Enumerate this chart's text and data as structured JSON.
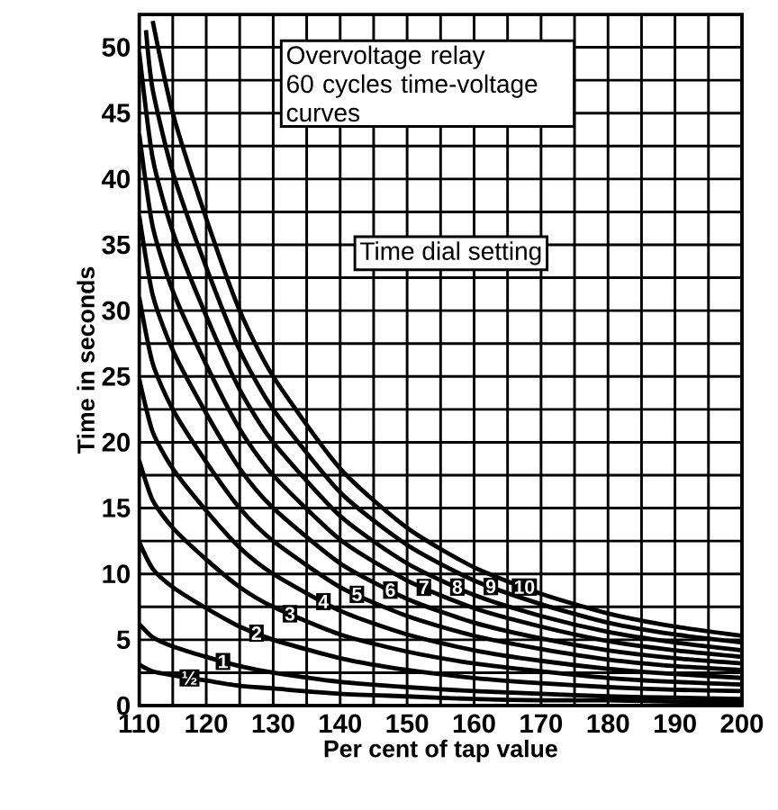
{
  "chart_data": {
    "type": "line",
    "title": "Overvoltage relay",
    "subtitle": "60 cycles time-voltage curves",
    "legend_title": "Time dial setting",
    "xlabel": "Per cent of tap value",
    "ylabel": "Time in seconds",
    "xlim": [
      110,
      200
    ],
    "ylim": [
      0,
      52.5
    ],
    "xticks": [
      110,
      120,
      130,
      140,
      150,
      160,
      170,
      180,
      190,
      200
    ],
    "yticks": [
      0,
      5,
      10,
      15,
      20,
      25,
      30,
      35,
      40,
      45,
      50
    ],
    "grid": true,
    "legend": "bottom left",
    "series": [
      {
        "name": "½",
        "color": "#000000",
        "x": [
          110,
          112,
          115,
          120,
          125,
          130,
          140,
          150,
          160,
          170,
          180,
          190,
          200
        ],
        "values": [
          3.1,
          2.6,
          2.3,
          1.9,
          1.5,
          1.3,
          0.9,
          0.7,
          0.5,
          0.4,
          0.4,
          0.3,
          0.3
        ]
      },
      {
        "name": "1",
        "color": "#000000",
        "x": [
          110,
          112,
          115,
          120,
          125,
          130,
          140,
          150,
          160,
          170,
          180,
          190,
          200
        ],
        "values": [
          6.2,
          5.2,
          4.5,
          3.7,
          3.0,
          2.5,
          1.8,
          1.4,
          1.1,
          0.9,
          0.7,
          0.6,
          0.5
        ]
      },
      {
        "name": "2",
        "color": "#000000",
        "x": [
          110,
          112,
          115,
          120,
          125,
          130,
          140,
          150,
          160,
          170,
          180,
          190,
          200
        ],
        "values": [
          12.4,
          10.4,
          9,
          7.4,
          6,
          5,
          3.6,
          2.7,
          2.1,
          1.7,
          1.4,
          1.2,
          1.1
        ]
      },
      {
        "name": "3",
        "color": "#000000",
        "x": [
          110,
          112,
          115,
          120,
          125,
          130,
          140,
          150,
          160,
          170,
          180,
          190,
          200
        ],
        "values": [
          18.6,
          15.6,
          13.5,
          11.1,
          9,
          7.5,
          5.4,
          4.1,
          3.2,
          2.6,
          2.1,
          1.8,
          1.6
        ]
      },
      {
        "name": "4",
        "color": "#000000",
        "x": [
          110,
          112,
          115,
          120,
          125,
          130,
          140,
          150,
          160,
          170,
          180,
          190,
          200
        ],
        "values": [
          24.8,
          20.8,
          18,
          14.8,
          12,
          10,
          7.2,
          5.4,
          4.2,
          3.4,
          2.8,
          2.4,
          2.1
        ]
      },
      {
        "name": "5",
        "color": "#000000",
        "x": [
          110,
          112,
          115,
          120,
          125,
          130,
          140,
          150,
          160,
          170,
          180,
          190,
          200
        ],
        "values": [
          31,
          26,
          22.5,
          18.5,
          15,
          12.5,
          9,
          6.8,
          5.3,
          4.3,
          3.5,
          3,
          2.7
        ]
      },
      {
        "name": "6",
        "color": "#000000",
        "x": [
          110,
          112,
          115,
          120,
          125,
          130,
          140,
          150,
          160,
          170,
          180,
          190,
          200
        ],
        "values": [
          37.2,
          31.2,
          27,
          22.2,
          18,
          15,
          10.8,
          8.1,
          6.3,
          5.1,
          4.2,
          3.6,
          3.2
        ]
      },
      {
        "name": "7",
        "color": "#000000",
        "x": [
          110,
          112,
          115,
          120,
          125,
          130,
          140,
          150,
          160,
          170,
          180,
          190,
          200
        ],
        "values": [
          43.4,
          36.4,
          31.5,
          25.9,
          21,
          17.5,
          12.6,
          9.5,
          7.4,
          6,
          4.9,
          4.2,
          3.7
        ]
      },
      {
        "name": "8",
        "color": "#000000",
        "x": [
          110,
          112,
          115,
          120,
          125,
          130,
          140,
          150,
          160,
          170,
          180,
          190,
          200
        ],
        "values": [
          49.6,
          41.6,
          36,
          29.6,
          24,
          20,
          14.4,
          10.8,
          8.4,
          6.8,
          5.6,
          4.8,
          4.2
        ]
      },
      {
        "name": "9",
        "color": "#000000",
        "x": [
          111,
          112,
          115,
          120,
          125,
          130,
          140,
          150,
          160,
          170,
          180,
          190,
          200
        ],
        "values": [
          51.3,
          46.8,
          40.5,
          33.3,
          27,
          22.5,
          16.2,
          12.2,
          9.5,
          7.7,
          6.3,
          5.4,
          4.8
        ]
      },
      {
        "name": "10",
        "color": "#000000",
        "x": [
          112,
          115,
          120,
          125,
          130,
          140,
          150,
          160,
          170,
          180,
          190,
          200
        ],
        "values": [
          52,
          45,
          37,
          30,
          25,
          18,
          13.5,
          10.5,
          8.5,
          7,
          6,
          5.3
        ]
      }
    ]
  }
}
